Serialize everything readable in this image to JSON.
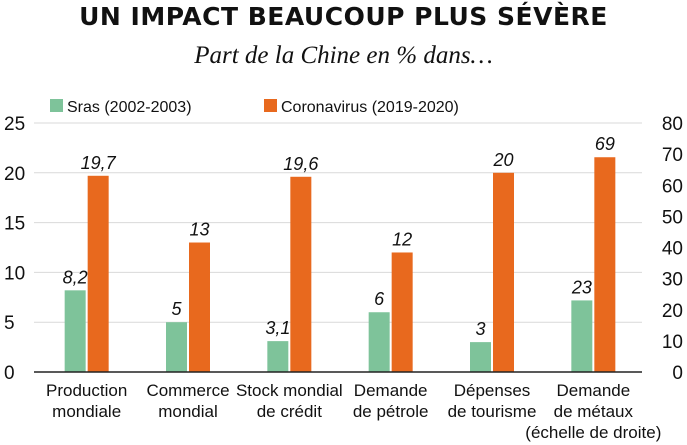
{
  "header": {
    "title": "UN IMPACT BEAUCOUP PLUS SÉVÈRE",
    "subtitle": "Part de la Chine en % dans…"
  },
  "colors": {
    "sras": "#7ec39a",
    "corona": "#e8691e",
    "grid": "#d9d9d9",
    "axis": "#222222"
  },
  "chart_data": {
    "type": "bar",
    "categories": [
      [
        "Production",
        "mondiale"
      ],
      [
        "Commerce",
        "mondial"
      ],
      [
        "Stock mondial",
        "de crédit"
      ],
      [
        "Demande",
        "de pétrole"
      ],
      [
        "Dépenses",
        "de tourisme"
      ],
      [
        "Demande",
        "de métaux",
        "(échelle de droite)"
      ]
    ],
    "series": [
      {
        "name": "Sras (2002-2003)",
        "values": [
          8.2,
          5,
          3.1,
          6,
          3,
          23
        ],
        "labels": [
          "8,2",
          "5",
          "3,1",
          "6",
          "3",
          "23"
        ]
      },
      {
        "name": "Coronavirus (2019-2020)",
        "values": [
          19.7,
          13,
          19.6,
          12,
          20,
          69
        ],
        "labels": [
          "19,7",
          "13",
          "19,6",
          "12",
          "20",
          "69"
        ]
      }
    ],
    "right_axis_category_index": 5,
    "y_left": {
      "ticks": [
        0,
        5,
        10,
        15,
        20,
        25
      ],
      "ylim": [
        0,
        25
      ]
    },
    "y_right": {
      "ticks": [
        0,
        10,
        20,
        30,
        40,
        50,
        60,
        70,
        80
      ],
      "ylim": [
        0,
        80
      ]
    },
    "grid": true,
    "legend_position": "top"
  }
}
